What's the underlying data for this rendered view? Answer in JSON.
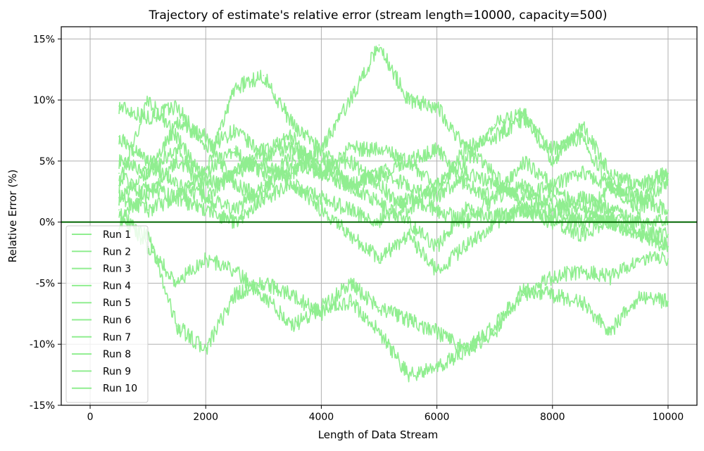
{
  "chart_data": {
    "type": "line",
    "title": "Trajectory of estimate's relative error (stream length=10000, capacity=500)",
    "xlabel": "Length of Data Stream",
    "ylabel": "Relative Error (%)",
    "xlim": [
      -500,
      10500
    ],
    "ylim": [
      -15,
      16
    ],
    "x_ticks": [
      0,
      2000,
      4000,
      6000,
      8000,
      10000
    ],
    "x_tick_labels": [
      "0",
      "2000",
      "4000",
      "6000",
      "8000",
      "10000"
    ],
    "y_ticks": [
      -15,
      -10,
      -5,
      0,
      5,
      10,
      15
    ],
    "y_tick_labels": [
      "-15%",
      "-10%",
      "-5%",
      "0%",
      "5%",
      "10%",
      "15%"
    ],
    "grid": true,
    "legend_position": "lower-left",
    "reference_line": {
      "y": 0,
      "color": "#006400"
    },
    "series_color": "#90ee90",
    "series": [
      {
        "name": "Run 1",
        "x": [
          500,
          1000,
          1500,
          2000,
          2500,
          3000,
          3500,
          4000,
          4500,
          5000,
          5500,
          6000,
          6500,
          7000,
          7500,
          8000,
          8500,
          9000,
          9500,
          10000
        ],
        "values": [
          9.5,
          8.5,
          9.5,
          6,
          7.5,
          5.5,
          6,
          4,
          3,
          1.5,
          0,
          -2,
          1,
          0.5,
          1,
          0.5,
          0,
          0.5,
          0,
          -2
        ]
      },
      {
        "name": "Run 2",
        "x": [
          500,
          1000,
          1500,
          2000,
          2500,
          3000,
          3500,
          4000,
          4500,
          5000,
          5500,
          6000,
          6500,
          7000,
          7500,
          8000,
          8500,
          9000,
          9500,
          10000
        ],
        "values": [
          2,
          1,
          2,
          4,
          11,
          12,
          8,
          6,
          10,
          14.5,
          10,
          9.5,
          6,
          7,
          8.5,
          6,
          7,
          3,
          1,
          3.5
        ]
      },
      {
        "name": "Run 3",
        "x": [
          500,
          1000,
          1500,
          2000,
          2500,
          3000,
          3500,
          4000,
          4500,
          5000,
          5500,
          6000,
          6500,
          7000,
          7500,
          8000,
          8500,
          9000,
          9500,
          10000
        ],
        "values": [
          0,
          -1,
          -8.5,
          -10.5,
          -6,
          -5,
          -6,
          -7.5,
          -6.5,
          -9,
          -12.5,
          -12,
          -10.5,
          -8.5,
          -5.5,
          -6,
          -6.5,
          -9,
          -6,
          -6.5
        ]
      },
      {
        "name": "Run 4",
        "x": [
          500,
          1000,
          1500,
          2000,
          2500,
          3000,
          3500,
          4000,
          4500,
          5000,
          5500,
          6000,
          6500,
          7000,
          7500,
          8000,
          8500,
          9000,
          9500,
          10000
        ],
        "values": [
          1,
          -2,
          -5,
          -3,
          -4,
          -6,
          -8.5,
          -7,
          -5,
          -7,
          -8,
          -9,
          -10.5,
          -9,
          -6,
          -4.5,
          -4,
          -4.5,
          -3,
          -3
        ]
      },
      {
        "name": "Run 5",
        "x": [
          500,
          1000,
          1500,
          2000,
          2500,
          3000,
          3500,
          4000,
          4500,
          5000,
          5500,
          6000,
          6500,
          7000,
          7500,
          8000,
          8500,
          9000,
          9500,
          10000
        ],
        "values": [
          3,
          10,
          7,
          3,
          4,
          6,
          7,
          4,
          5,
          3,
          1,
          3,
          5,
          8,
          9,
          5,
          8,
          4,
          3,
          4
        ]
      },
      {
        "name": "Run 6",
        "x": [
          500,
          1000,
          1500,
          2000,
          2500,
          3000,
          3500,
          4000,
          4500,
          5000,
          5500,
          6000,
          6500,
          7000,
          7500,
          8000,
          8500,
          9000,
          9500,
          10000
        ],
        "values": [
          5,
          4,
          6,
          2,
          1,
          3,
          5,
          4,
          6,
          6,
          5,
          6,
          3,
          2,
          5,
          3,
          4,
          3,
          2,
          1
        ]
      },
      {
        "name": "Run 7",
        "x": [
          500,
          1000,
          1500,
          2000,
          2500,
          3000,
          3500,
          4000,
          4500,
          5000,
          5500,
          6000,
          6500,
          7000,
          7500,
          8000,
          8500,
          9000,
          9500,
          10000
        ],
        "values": [
          0,
          3,
          2,
          1,
          0,
          2,
          3,
          1,
          -1,
          -3,
          -1,
          -4,
          -2,
          0,
          1,
          0,
          -1,
          0,
          -1,
          -2
        ]
      },
      {
        "name": "Run 8",
        "x": [
          500,
          1000,
          1500,
          2000,
          2500,
          3000,
          3500,
          4000,
          4500,
          5000,
          5500,
          6000,
          6500,
          7000,
          7500,
          8000,
          8500,
          9000,
          9500,
          10000
        ],
        "values": [
          4,
          2,
          5,
          4,
          6,
          4,
          4,
          6,
          3,
          4,
          3,
          2,
          4,
          3,
          2,
          3,
          1,
          0,
          -1,
          -1
        ]
      },
      {
        "name": "Run 9",
        "x": [
          500,
          1000,
          1500,
          2000,
          2500,
          3000,
          3500,
          4000,
          4500,
          5000,
          5500,
          6000,
          6500,
          7000,
          7500,
          8000,
          8500,
          9000,
          9500,
          10000
        ],
        "values": [
          7,
          5,
          3,
          2,
          4,
          5,
          3,
          2,
          1,
          0,
          2,
          1,
          0,
          2,
          3,
          1,
          2,
          1,
          0,
          0
        ]
      },
      {
        "name": "Run 10",
        "x": [
          500,
          1000,
          1500,
          2000,
          2500,
          3000,
          3500,
          4000,
          4500,
          5000,
          5500,
          6000,
          6500,
          7000,
          7500,
          8000,
          8500,
          9000,
          9500,
          10000
        ],
        "values": [
          2,
          4,
          8,
          7,
          3,
          2,
          6,
          5,
          3,
          4,
          5,
          3,
          6,
          4,
          1,
          2,
          0,
          3,
          2,
          4
        ]
      }
    ]
  }
}
